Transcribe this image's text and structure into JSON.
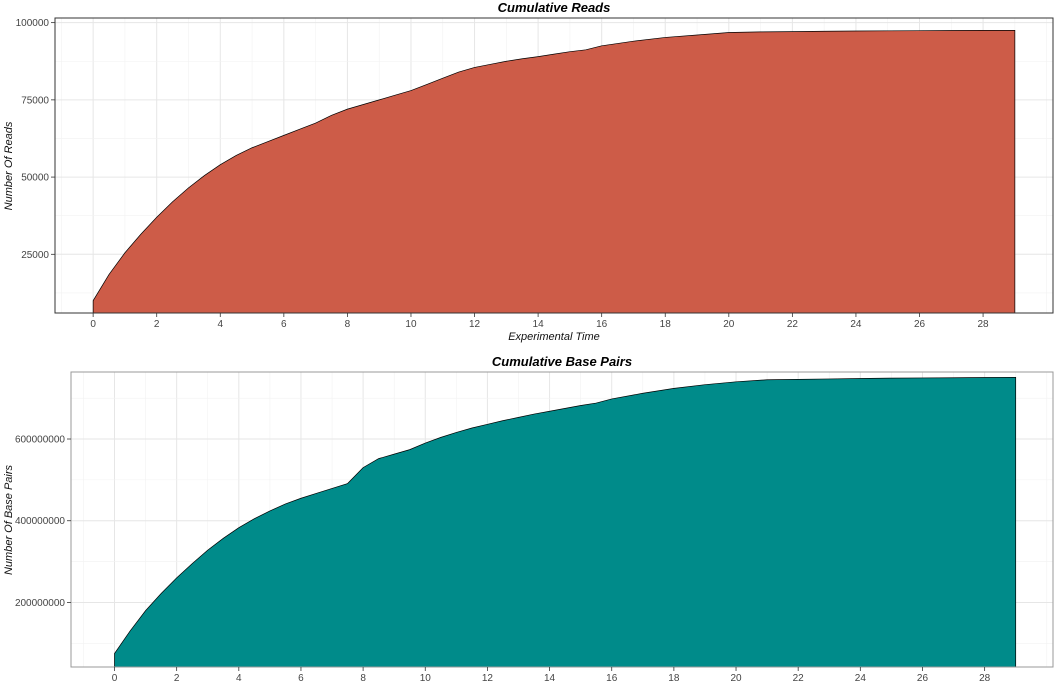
{
  "chart_data": [
    {
      "type": "area",
      "title": "Cumulative Reads",
      "xlabel": "Experimental Time",
      "ylabel": "Number Of Reads",
      "xlim": [
        -1.2,
        30.2
      ],
      "ylim": [
        6000,
        101500
      ],
      "x_ticks": [
        0,
        2,
        4,
        6,
        8,
        10,
        12,
        14,
        16,
        18,
        20,
        22,
        24,
        26,
        28
      ],
      "y_ticks": [
        25000,
        50000,
        75000,
        100000
      ],
      "fill": "#CD5C48",
      "series": [
        {
          "x": [
            0,
            0.5,
            1,
            1.5,
            2,
            2.5,
            3,
            3.5,
            4,
            4.5,
            5,
            5.5,
            6,
            6.5,
            7,
            7.5,
            8,
            8.5,
            9,
            9.5,
            10,
            10.5,
            11,
            11.5,
            12,
            12.5,
            13,
            13.5,
            14,
            14.5,
            15,
            15.5,
            16,
            17,
            18,
            19,
            20,
            21,
            22,
            23,
            24,
            25,
            26,
            27,
            28,
            29
          ],
          "y": [
            10000,
            18500,
            25500,
            31500,
            37000,
            42000,
            46500,
            50500,
            54000,
            57000,
            59500,
            61500,
            63500,
            65500,
            67500,
            70000,
            72000,
            73500,
            75000,
            76500,
            78000,
            80000,
            82000,
            84000,
            85500,
            86500,
            87500,
            88300,
            89000,
            89800,
            90600,
            91200,
            92500,
            94000,
            95200,
            96000,
            96800,
            97000,
            97100,
            97200,
            97300,
            97350,
            97400,
            97450,
            97500,
            97500
          ]
        }
      ]
    },
    {
      "type": "area",
      "title": "Cumulative Base Pairs",
      "xlabel": "",
      "ylabel": "Number Of Base Pairs",
      "xlim": [
        -1.4,
        30.2
      ],
      "ylim": [
        42000000,
        764000000
      ],
      "x_ticks": [
        0,
        2,
        4,
        6,
        8,
        10,
        12,
        14,
        16,
        18,
        20,
        22,
        24,
        26,
        28
      ],
      "y_ticks": [
        200000000,
        400000000,
        600000000
      ],
      "fill": "#008B8A",
      "series": [
        {
          "x": [
            0,
            0.5,
            1,
            1.5,
            2,
            2.5,
            3,
            3.5,
            4,
            4.5,
            5,
            5.5,
            6,
            6.5,
            7,
            7.5,
            8,
            8.5,
            9,
            9.5,
            10,
            10.5,
            11,
            11.5,
            12,
            12.5,
            13,
            13.5,
            14,
            14.5,
            15,
            15.5,
            16,
            17,
            18,
            19,
            20,
            21,
            22,
            23,
            24,
            25,
            26,
            27,
            28,
            29
          ],
          "y": [
            75000000,
            130000000,
            180000000,
            222000000,
            260000000,
            295000000,
            328000000,
            357000000,
            383000000,
            405000000,
            424000000,
            441000000,
            455000000,
            467000000,
            479000000,
            491000000,
            530000000,
            552000000,
            563000000,
            574000000,
            590000000,
            604000000,
            616000000,
            627000000,
            636000000,
            645000000,
            653000000,
            661000000,
            668000000,
            675000000,
            682000000,
            688000000,
            698000000,
            712000000,
            724000000,
            733000000,
            740000000,
            745000000,
            746000000,
            747000000,
            748000000,
            749000000,
            749500000,
            750000000,
            750500000,
            751000000
          ]
        }
      ]
    }
  ]
}
